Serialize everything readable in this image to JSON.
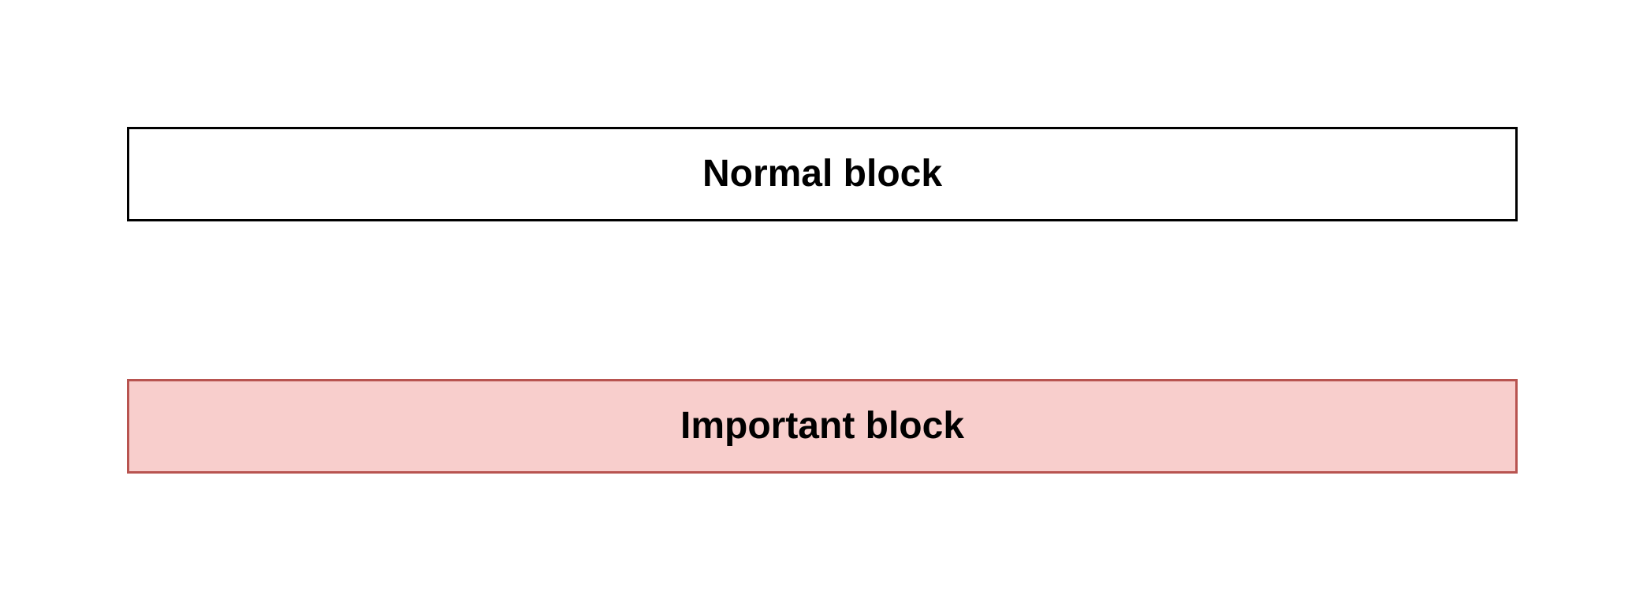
{
  "diagram": {
    "blocks": [
      {
        "id": "normal",
        "label": "Normal block",
        "fill": "#ffffff",
        "stroke": "#000000"
      },
      {
        "id": "important",
        "label": "Important block",
        "fill": "#f8cecc",
        "stroke": "#b85450"
      }
    ]
  }
}
